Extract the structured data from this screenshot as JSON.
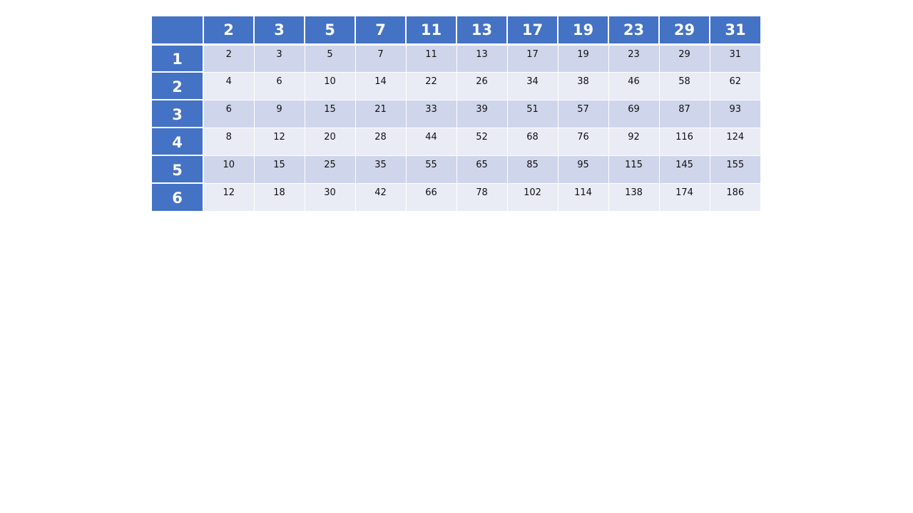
{
  "table": {
    "corner": "",
    "columns": [
      "2",
      "3",
      "5",
      "7",
      "11",
      "13",
      "17",
      "19",
      "23",
      "29",
      "31"
    ],
    "rows": [
      {
        "header": "1",
        "cells": [
          "2",
          "3",
          "5",
          "7",
          "11",
          "13",
          "17",
          "19",
          "23",
          "29",
          "31"
        ]
      },
      {
        "header": "2",
        "cells": [
          "4",
          "6",
          "10",
          "14",
          "22",
          "26",
          "34",
          "38",
          "46",
          "58",
          "62"
        ]
      },
      {
        "header": "3",
        "cells": [
          "6",
          "9",
          "15",
          "21",
          "33",
          "39",
          "51",
          "57",
          "69",
          "87",
          "93"
        ]
      },
      {
        "header": "4",
        "cells": [
          "8",
          "12",
          "20",
          "28",
          "44",
          "52",
          "68",
          "76",
          "92",
          "116",
          "124"
        ]
      },
      {
        "header": "5",
        "cells": [
          "10",
          "15",
          "25",
          "35",
          "55",
          "65",
          "85",
          "95",
          "115",
          "145",
          "155"
        ]
      },
      {
        "header": "6",
        "cells": [
          "12",
          "18",
          "30",
          "42",
          "66",
          "78",
          "102",
          "114",
          "138",
          "174",
          "186"
        ]
      }
    ],
    "colors": {
      "header_fill": "#4472c4",
      "band_dark": "#cfd5ea",
      "band_light": "#e9ebf5",
      "header_text": "#ffffff"
    }
  }
}
